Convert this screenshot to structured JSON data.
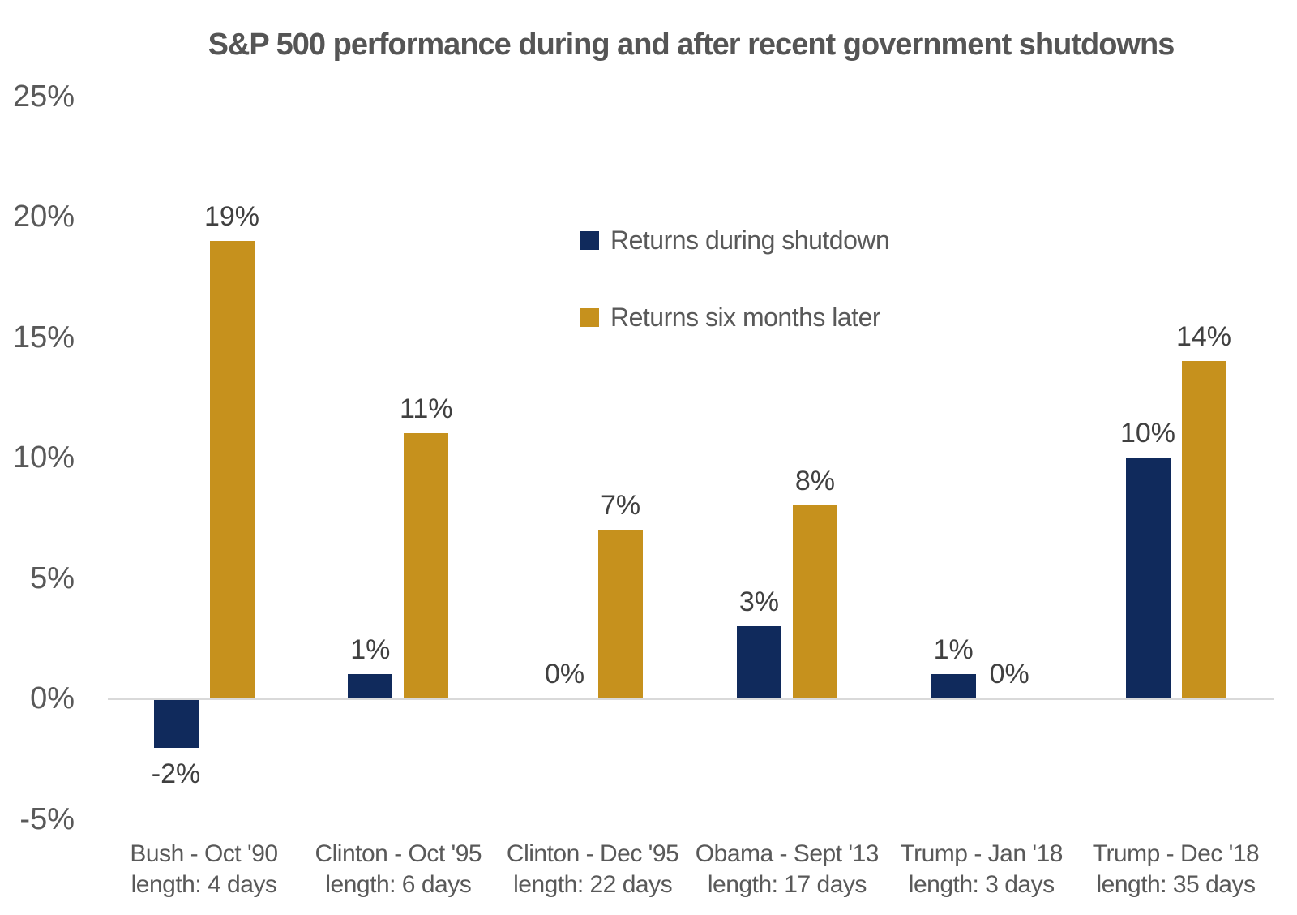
{
  "chart_data": {
    "type": "bar",
    "title": "S&P 500 performance during and after recent government shutdowns",
    "categories": [
      {
        "label": "Bush - Oct '90",
        "sublabel": "length: 4 days"
      },
      {
        "label": "Clinton - Oct '95",
        "sublabel": "length: 6 days"
      },
      {
        "label": "Clinton - Dec '95",
        "sublabel": "length: 22 days"
      },
      {
        "label": "Obama - Sept '13",
        "sublabel": "length: 17 days"
      },
      {
        "label": "Trump - Jan '18",
        "sublabel": "length: 3 days"
      },
      {
        "label": "Trump - Dec '18",
        "sublabel": "length: 35 days"
      }
    ],
    "series": [
      {
        "name": "Returns during shutdown",
        "color": "#102A5C",
        "values": [
          -2,
          1,
          0,
          3,
          1,
          10
        ],
        "labels": [
          "-2%",
          "1%",
          "0%",
          "3%",
          "1%",
          "10%"
        ]
      },
      {
        "name": "Returns six months later",
        "color": "#C6911D",
        "values": [
          19,
          11,
          7,
          8,
          0,
          14
        ],
        "labels": [
          "19%",
          "11%",
          "7%",
          "8%",
          "0%",
          "14%"
        ]
      }
    ],
    "y_ticks": [
      {
        "label": "25%",
        "value": 25
      },
      {
        "label": "20%",
        "value": 20
      },
      {
        "label": "15%",
        "value": 15
      },
      {
        "label": "10%",
        "value": 10
      },
      {
        "label": "5%",
        "value": 5
      },
      {
        "label": "0%",
        "value": 0
      },
      {
        "label": "-5%",
        "value": -5
      }
    ],
    "ylim": [
      -5,
      25
    ],
    "grid": false,
    "legend_position": "upper-center",
    "colors": {
      "axis_line": "#D9D9D9",
      "tick_text": "#595959",
      "value_text": "#404040",
      "category_text": "#595959",
      "legend_text": "#595959",
      "title_text": "#555555",
      "background": "#FFFFFF"
    }
  }
}
